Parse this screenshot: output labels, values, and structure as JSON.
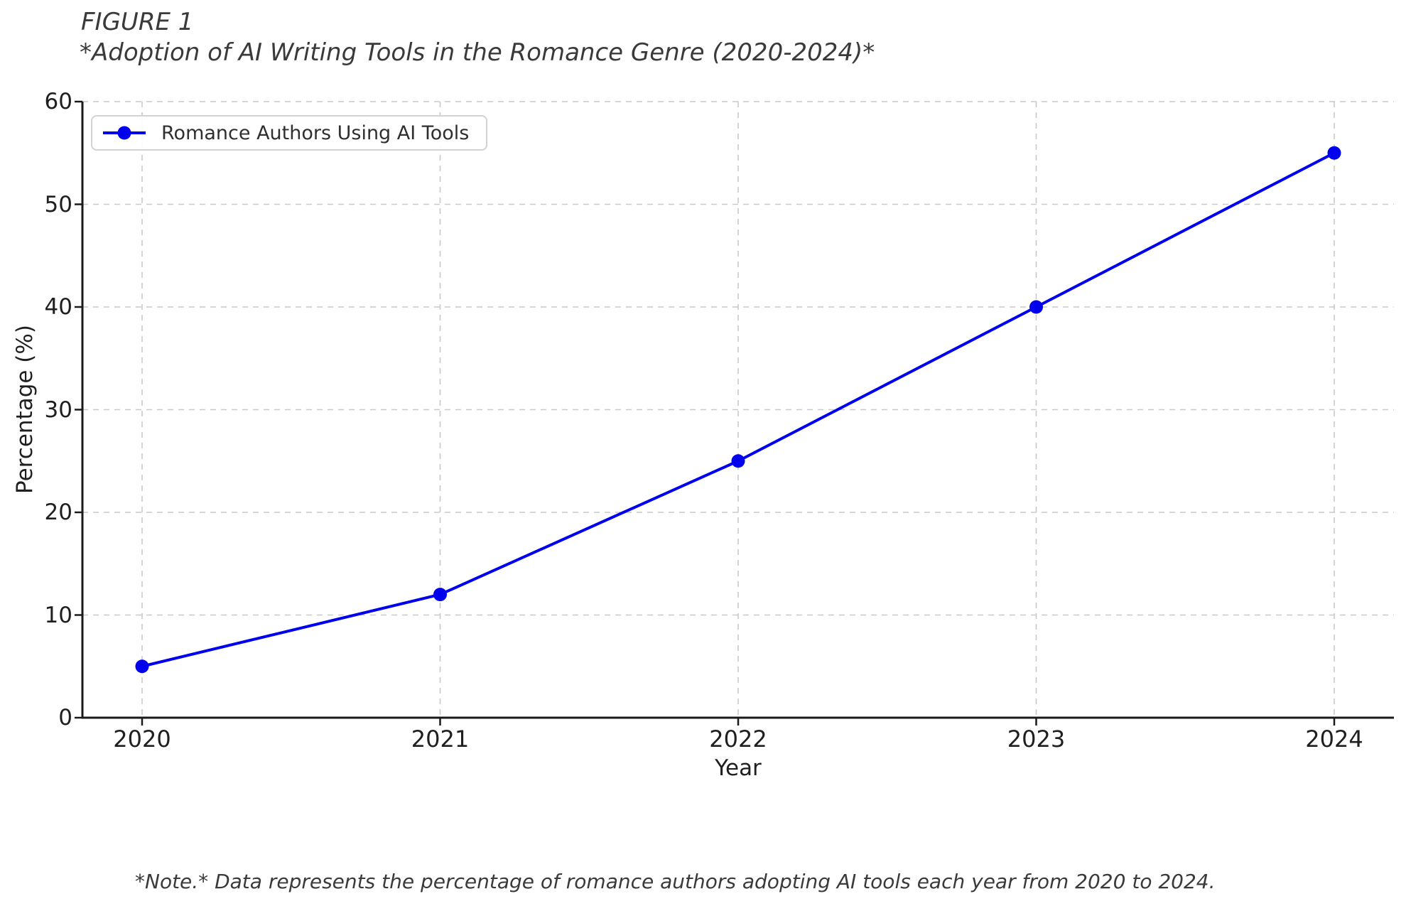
{
  "figure": {
    "label": "FIGURE 1",
    "title": "*Adoption of AI Writing Tools in the Romance Genre (2020-2024)*",
    "note": "*Note.* Data represents the percentage of romance authors adopting AI tools each year from 2020 to 2024."
  },
  "chart_data": {
    "type": "line",
    "title": "Adoption of AI Writing Tools in the Romance Genre (2020-2024)",
    "x": [
      "2020",
      "2021",
      "2022",
      "2023",
      "2024"
    ],
    "series": [
      {
        "name": "Romance Authors Using AI Tools",
        "values": [
          5,
          12,
          25,
          40,
          55
        ],
        "color": "#0000ee",
        "marker": "circle"
      }
    ],
    "xlabel": "Year",
    "ylabel": "Percentage (%)",
    "ylim": [
      0,
      60
    ],
    "yticks": [
      0,
      10,
      20,
      30,
      40,
      50,
      60
    ],
    "grid": true,
    "grid_style": "dashed",
    "legend_position": "upper-left"
  }
}
